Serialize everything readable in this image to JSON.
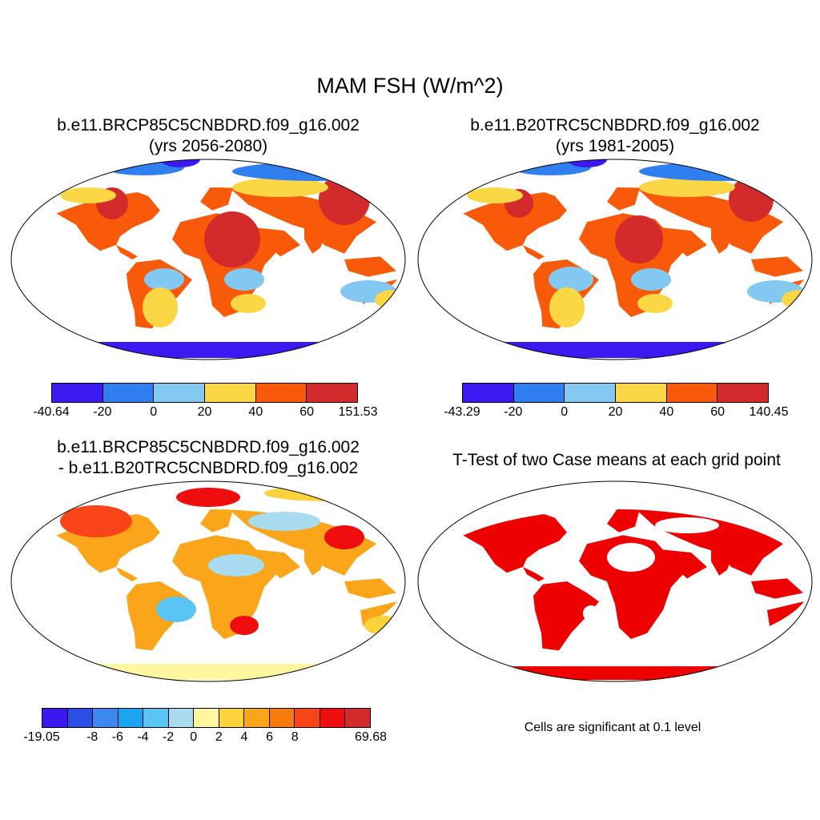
{
  "figure": {
    "title": "MAM FSH (W/m^2)"
  },
  "panels": [
    {
      "title_line1": "b.e11.BRCP85C5CNBDRD.f09_g16.002",
      "title_line2": "(yrs 2056-2080)",
      "colorbar": {
        "colors": [
          "#3b1af2",
          "#2f7ff0",
          "#82c8f0",
          "#fbd745",
          "#f95a0a",
          "#d32b2b"
        ],
        "labels": [
          "-40.64",
          "-20",
          "0",
          "20",
          "40",
          "60",
          "151.53"
        ]
      }
    },
    {
      "title_line1": "b.e11.B20TRC5CNBDRD.f09_g16.002",
      "title_line2": "(yrs 1981-2005)",
      "colorbar": {
        "colors": [
          "#3b1af2",
          "#2f7ff0",
          "#82c8f0",
          "#fbd745",
          "#f95a0a",
          "#d32b2b"
        ],
        "labels": [
          "-43.29",
          "-20",
          "0",
          "20",
          "40",
          "60",
          "140.45"
        ]
      }
    },
    {
      "title_line1": "b.e11.BRCP85C5CNBDRD.f09_g16.002",
      "title_line2": "- b.e11.B20TRC5CNBDRD.f09_g16.002",
      "colorbar": {
        "colors": [
          "#3a18f0",
          "#2a4ee8",
          "#3a88f0",
          "#1aa4f2",
          "#5ac4f5",
          "#a8daf0",
          "#fff6a0",
          "#fcd23a",
          "#fba61a",
          "#f87a0d",
          "#f94418",
          "#ef0d0d",
          "#d32b2b"
        ],
        "labels": [
          "-19.05",
          "-8",
          "-6",
          "-4",
          "-2",
          "0",
          "2",
          "4",
          "6",
          "8",
          "69.68"
        ]
      }
    },
    {
      "title_line1": "T-Test of two Case means at each grid point",
      "note": "Cells are significant at 0.1 level",
      "significance_color": "#ee0000"
    }
  ]
}
